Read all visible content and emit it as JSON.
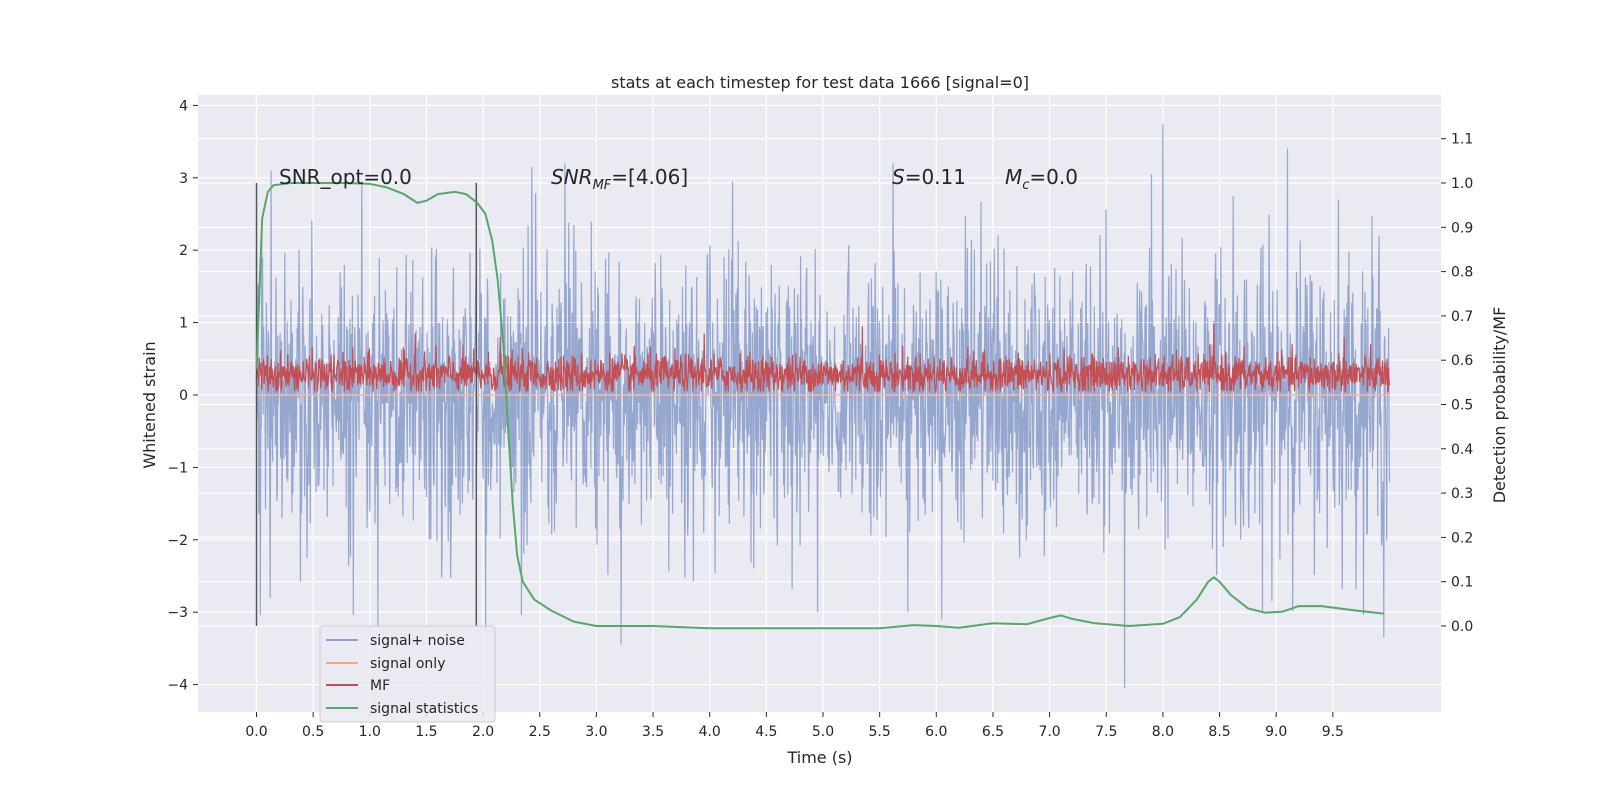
{
  "chart_data": {
    "type": "line",
    "title": "stats at each timestep for test data 1666 [signal=0]",
    "xlabel": "Time (s)",
    "ylabel": "Whitened strain",
    "y2label": "Detection probability/MF",
    "xlim": [
      -0.5,
      10.5
    ],
    "ylim": [
      -4.45,
      4.1
    ],
    "y2lim": [
      -0.195,
      1.195
    ],
    "x_ticks": [
      "0.0",
      "0.5",
      "1.0",
      "1.5",
      "2.0",
      "2.5",
      "3.0",
      "3.5",
      "4.0",
      "4.5",
      "5.0",
      "5.5",
      "6.0",
      "6.5",
      "7.0",
      "7.5",
      "8.0",
      "8.5",
      "9.0",
      "9.5"
    ],
    "y_ticks": [
      "−4",
      "−3",
      "−2",
      "−1",
      "0",
      "1",
      "2",
      "3",
      "4"
    ],
    "y2_ticks": [
      "0.0",
      "0.1",
      "0.2",
      "0.3",
      "0.4",
      "0.5",
      "0.6",
      "0.7",
      "0.8",
      "0.9",
      "1.0",
      "1.1"
    ],
    "grid": true,
    "legend_position": "lower-left",
    "annotations": {
      "snr_opt": "SNR_opt=0.0",
      "snr_mf_prefix": "SNR",
      "snr_mf_sub": "MF",
      "snr_mf_value": "=[4.06]",
      "s_label": "S",
      "s_value": "=0.11",
      "mc_label": "M",
      "mc_sub": "c",
      "mc_value": "=0.0"
    },
    "window_markers": [
      0.0,
      1.94
    ],
    "series": [
      {
        "name": "signal+ noise",
        "axis": "left",
        "color": "#8da0cb",
        "x_range": [
          0.0,
          10.0
        ],
        "envelope": {
          "upper_typical": 1.6,
          "lower_typical": -1.6,
          "max": 3.75,
          "min": -4.05
        },
        "peaks": [
          [
            0.13,
            3.1
          ],
          [
            0.93,
            2.95
          ],
          [
            2.43,
            3.15
          ],
          [
            2.72,
            3.2
          ],
          [
            4.2,
            2.95
          ],
          [
            5.62,
            3.2
          ],
          [
            7.9,
            3.05
          ],
          [
            8.0,
            3.75
          ],
          [
            8.62,
            2.75
          ],
          [
            9.1,
            3.4
          ],
          [
            9.55,
            2.7
          ],
          [
            9.91,
            2.2
          ]
        ],
        "troughs": [
          [
            0.12,
            -2.8
          ],
          [
            1.07,
            -3.2
          ],
          [
            2.02,
            -3.25
          ],
          [
            3.22,
            -3.45
          ],
          [
            4.95,
            -3.0
          ],
          [
            5.75,
            -3.0
          ],
          [
            6.05,
            -3.1
          ],
          [
            7.66,
            -4.05
          ],
          [
            8.88,
            -3.0
          ],
          [
            9.95,
            -3.35
          ]
        ]
      },
      {
        "name": "signal only",
        "axis": "left",
        "color": "#f4a582",
        "x": [
          0,
          10
        ],
        "y": [
          0,
          0
        ]
      },
      {
        "name": "MF",
        "axis": "left",
        "color": "#c44e52",
        "x_range": [
          0.0,
          10.0
        ],
        "baseline": 0.28,
        "band": [
          0.05,
          0.6
        ],
        "peaks": [
          [
            1.4,
            0.85
          ],
          [
            2.15,
            0.8
          ],
          [
            3.95,
            0.85
          ],
          [
            5.35,
            0.95
          ],
          [
            8.45,
            0.98
          ],
          [
            9.6,
            0.8
          ]
        ]
      },
      {
        "name": "signal statistics",
        "axis": "right",
        "color": "#55a868",
        "x": [
          0.0,
          0.05,
          0.1,
          0.15,
          0.3,
          0.5,
          0.8,
          1.0,
          1.15,
          1.3,
          1.42,
          1.5,
          1.6,
          1.75,
          1.85,
          1.95,
          2.02,
          2.08,
          2.13,
          2.18,
          2.22,
          2.26,
          2.3,
          2.35,
          2.45,
          2.6,
          2.8,
          3.0,
          3.5,
          4.0,
          4.5,
          5.0,
          5.5,
          5.8,
          6.0,
          6.2,
          6.5,
          6.8,
          7.0,
          7.1,
          7.2,
          7.4,
          7.7,
          8.0,
          8.15,
          8.3,
          8.4,
          8.45,
          8.5,
          8.6,
          8.75,
          8.9,
          9.05,
          9.2,
          9.4,
          9.7,
          9.95
        ],
        "y": [
          0.58,
          0.92,
          0.98,
          0.995,
          1.0,
          1.0,
          1.0,
          0.998,
          0.99,
          0.975,
          0.955,
          0.96,
          0.975,
          0.98,
          0.975,
          0.955,
          0.93,
          0.87,
          0.78,
          0.63,
          0.45,
          0.28,
          0.16,
          0.1,
          0.06,
          0.035,
          0.01,
          0.0,
          0.0,
          -0.005,
          -0.005,
          -0.005,
          -0.005,
          0.002,
          0.0,
          -0.004,
          0.006,
          0.004,
          0.018,
          0.024,
          0.016,
          0.006,
          0.0,
          0.005,
          0.02,
          0.06,
          0.1,
          0.11,
          0.1,
          0.07,
          0.04,
          0.03,
          0.032,
          0.045,
          0.045,
          0.035,
          0.028
        ]
      }
    ]
  }
}
